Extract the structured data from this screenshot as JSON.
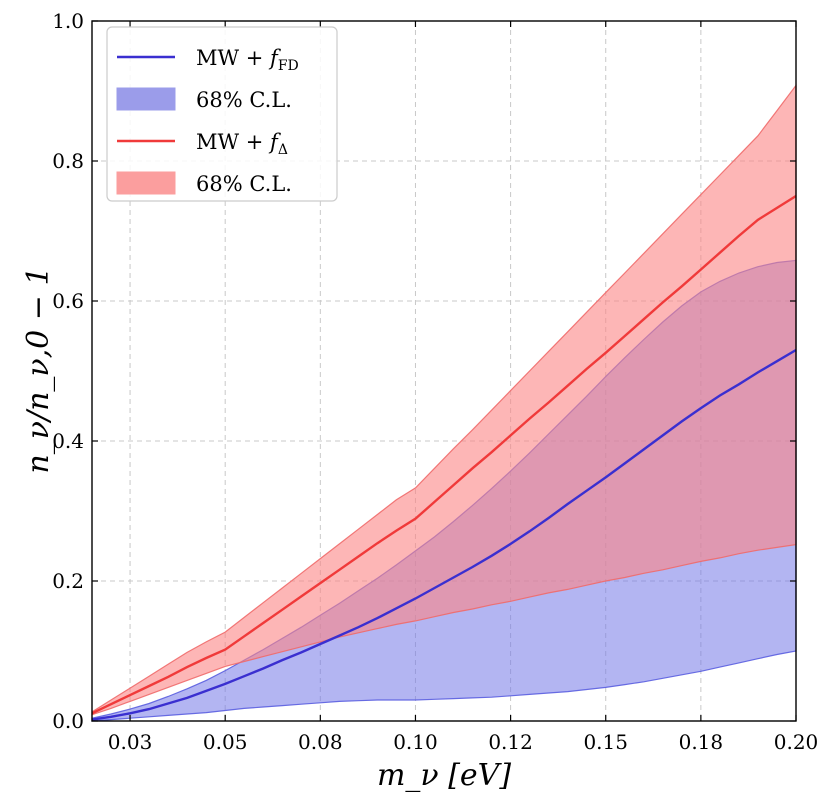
{
  "chart_data": {
    "type": "area",
    "xlabel": "m_ν [eV]",
    "ylabel": "n_ν/n_ν,0 − 1",
    "xlim": [
      0.015,
      0.2
    ],
    "ylim": [
      0.0,
      1.0
    ],
    "xticks": [
      0.025,
      0.05,
      0.075,
      0.1,
      0.125,
      0.15,
      0.175,
      0.2
    ],
    "xtick_labels": [
      "0.03",
      "0.05",
      "0.08",
      "0.10",
      "0.12",
      "0.15",
      "0.18",
      "0.20"
    ],
    "yticks": [
      0.0,
      0.2,
      0.4,
      0.6,
      0.8,
      1.0
    ],
    "ytick_labels": [
      "0.0",
      "0.2",
      "0.4",
      "0.6",
      "0.8",
      "1.0"
    ],
    "grid": true,
    "legend_position": "top-left",
    "legend": [
      {
        "kind": "line",
        "label": "MW + ",
        "italic": "f",
        "subscript": "FD",
        "color": "#3a2fd0"
      },
      {
        "kind": "band",
        "label": "68% C.L.",
        "color": "#9b9cea"
      },
      {
        "kind": "line",
        "label": "MW + ",
        "italic": "f",
        "subscript": "Δ",
        "color": "#f03a3a"
      },
      {
        "kind": "band",
        "label": "68% C.L.",
        "color": "#fb9e9e"
      }
    ],
    "series": [
      {
        "name": "MW + f_FD",
        "line_color": "#3a2fd0",
        "band_color": "#7478e8",
        "band_edge": "#5a5ee0",
        "x": [
          0.015,
          0.02,
          0.025,
          0.03,
          0.035,
          0.04,
          0.045,
          0.05,
          0.055,
          0.06,
          0.065,
          0.07,
          0.075,
          0.08,
          0.085,
          0.09,
          0.095,
          0.1,
          0.105,
          0.11,
          0.115,
          0.12,
          0.125,
          0.13,
          0.135,
          0.14,
          0.145,
          0.15,
          0.155,
          0.16,
          0.165,
          0.17,
          0.175,
          0.18,
          0.185,
          0.19,
          0.195,
          0.2
        ],
        "y": [
          0.002,
          0.006,
          0.011,
          0.017,
          0.025,
          0.033,
          0.043,
          0.053,
          0.064,
          0.075,
          0.087,
          0.098,
          0.11,
          0.122,
          0.134,
          0.147,
          0.161,
          0.175,
          0.19,
          0.205,
          0.22,
          0.236,
          0.253,
          0.271,
          0.29,
          0.31,
          0.329,
          0.348,
          0.368,
          0.388,
          0.408,
          0.428,
          0.447,
          0.465,
          0.481,
          0.498,
          0.514,
          0.53
        ],
        "lower": [
          0.0,
          0.002,
          0.004,
          0.006,
          0.008,
          0.01,
          0.012,
          0.015,
          0.018,
          0.02,
          0.022,
          0.024,
          0.026,
          0.028,
          0.029,
          0.03,
          0.03,
          0.03,
          0.031,
          0.032,
          0.033,
          0.034,
          0.036,
          0.038,
          0.04,
          0.042,
          0.045,
          0.048,
          0.052,
          0.056,
          0.061,
          0.066,
          0.071,
          0.077,
          0.083,
          0.089,
          0.095,
          0.1
        ],
        "upper": [
          0.004,
          0.01,
          0.017,
          0.025,
          0.035,
          0.046,
          0.058,
          0.072,
          0.087,
          0.102,
          0.118,
          0.134,
          0.151,
          0.168,
          0.186,
          0.204,
          0.223,
          0.243,
          0.263,
          0.285,
          0.308,
          0.332,
          0.357,
          0.383,
          0.41,
          0.437,
          0.464,
          0.492,
          0.519,
          0.545,
          0.57,
          0.593,
          0.613,
          0.628,
          0.64,
          0.649,
          0.655,
          0.658
        ]
      },
      {
        "name": "MW + f_Δ",
        "line_color": "#f03a3a",
        "band_color": "#fb8585",
        "band_edge": "#ef6a6a",
        "x": [
          0.015,
          0.02,
          0.025,
          0.03,
          0.035,
          0.04,
          0.045,
          0.05,
          0.055,
          0.06,
          0.065,
          0.07,
          0.075,
          0.08,
          0.085,
          0.09,
          0.095,
          0.1,
          0.105,
          0.11,
          0.115,
          0.12,
          0.125,
          0.13,
          0.135,
          0.14,
          0.145,
          0.15,
          0.155,
          0.16,
          0.165,
          0.17,
          0.175,
          0.18,
          0.185,
          0.19,
          0.195,
          0.2
        ],
        "y": [
          0.011,
          0.024,
          0.037,
          0.05,
          0.063,
          0.077,
          0.09,
          0.102,
          0.121,
          0.14,
          0.159,
          0.178,
          0.197,
          0.216,
          0.235,
          0.254,
          0.272,
          0.289,
          0.313,
          0.337,
          0.361,
          0.384,
          0.408,
          0.432,
          0.455,
          0.479,
          0.503,
          0.526,
          0.55,
          0.574,
          0.598,
          0.621,
          0.645,
          0.669,
          0.693,
          0.716,
          0.733,
          0.75
        ],
        "lower": [
          0.009,
          0.018,
          0.028,
          0.038,
          0.048,
          0.058,
          0.068,
          0.078,
          0.085,
          0.092,
          0.099,
          0.106,
          0.113,
          0.12,
          0.126,
          0.132,
          0.138,
          0.143,
          0.149,
          0.155,
          0.16,
          0.166,
          0.171,
          0.177,
          0.183,
          0.188,
          0.194,
          0.2,
          0.205,
          0.211,
          0.216,
          0.222,
          0.228,
          0.233,
          0.239,
          0.244,
          0.248,
          0.252
        ],
        "upper": [
          0.013,
          0.03,
          0.047,
          0.064,
          0.081,
          0.098,
          0.113,
          0.127,
          0.148,
          0.169,
          0.19,
          0.211,
          0.232,
          0.253,
          0.274,
          0.295,
          0.316,
          0.333,
          0.361,
          0.389,
          0.416,
          0.444,
          0.472,
          0.5,
          0.528,
          0.556,
          0.584,
          0.612,
          0.64,
          0.668,
          0.696,
          0.724,
          0.752,
          0.78,
          0.808,
          0.836,
          0.872,
          0.908
        ]
      }
    ]
  }
}
